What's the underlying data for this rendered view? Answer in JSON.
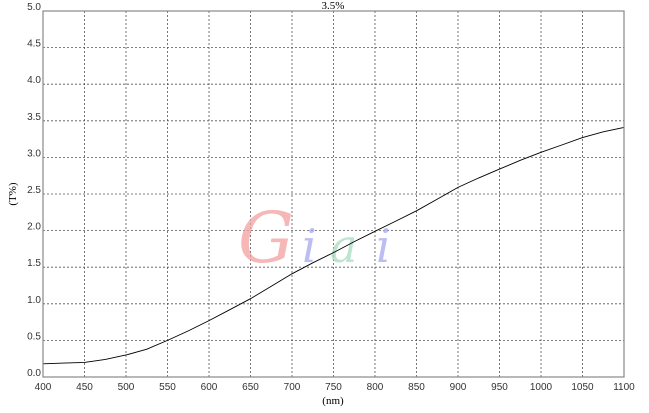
{
  "chart_data": {
    "type": "line",
    "title": "3.5%",
    "xlabel": "(nm)",
    "ylabel": "(T%)",
    "xlim": [
      400,
      1100
    ],
    "ylim": [
      0,
      5
    ],
    "grid": true,
    "x_ticks": [
      "400",
      "450",
      "500",
      "550",
      "600",
      "650",
      "700",
      "750",
      "800",
      "850",
      "900",
      "950",
      "1000",
      "1050",
      "1100"
    ],
    "y_ticks": [
      "0.0",
      "0.5",
      "1.0",
      "1.5",
      "2.0",
      "2.5",
      "3.0",
      "3.5",
      "4.0",
      "4.5",
      "5.0"
    ],
    "series": [
      {
        "color": "#000000",
        "x": [
          400,
          425,
          450,
          475,
          500,
          525,
          550,
          575,
          600,
          625,
          650,
          675,
          700,
          725,
          750,
          775,
          800,
          825,
          850,
          875,
          900,
          925,
          950,
          975,
          1000,
          1025,
          1050,
          1075,
          1100
        ],
        "y": [
          0.18,
          0.19,
          0.2,
          0.24,
          0.3,
          0.38,
          0.5,
          0.63,
          0.77,
          0.92,
          1.07,
          1.24,
          1.41,
          1.56,
          1.7,
          1.85,
          1.99,
          2.13,
          2.27,
          2.43,
          2.59,
          2.72,
          2.84,
          2.96,
          3.07,
          3.17,
          3.27,
          3.35,
          3.41
        ]
      }
    ]
  },
  "watermark": {
    "text": "Giai",
    "colors": [
      "#f4a0a0",
      "#a8a8f0",
      "#a8dcc0",
      "#a8a8f0"
    ]
  }
}
